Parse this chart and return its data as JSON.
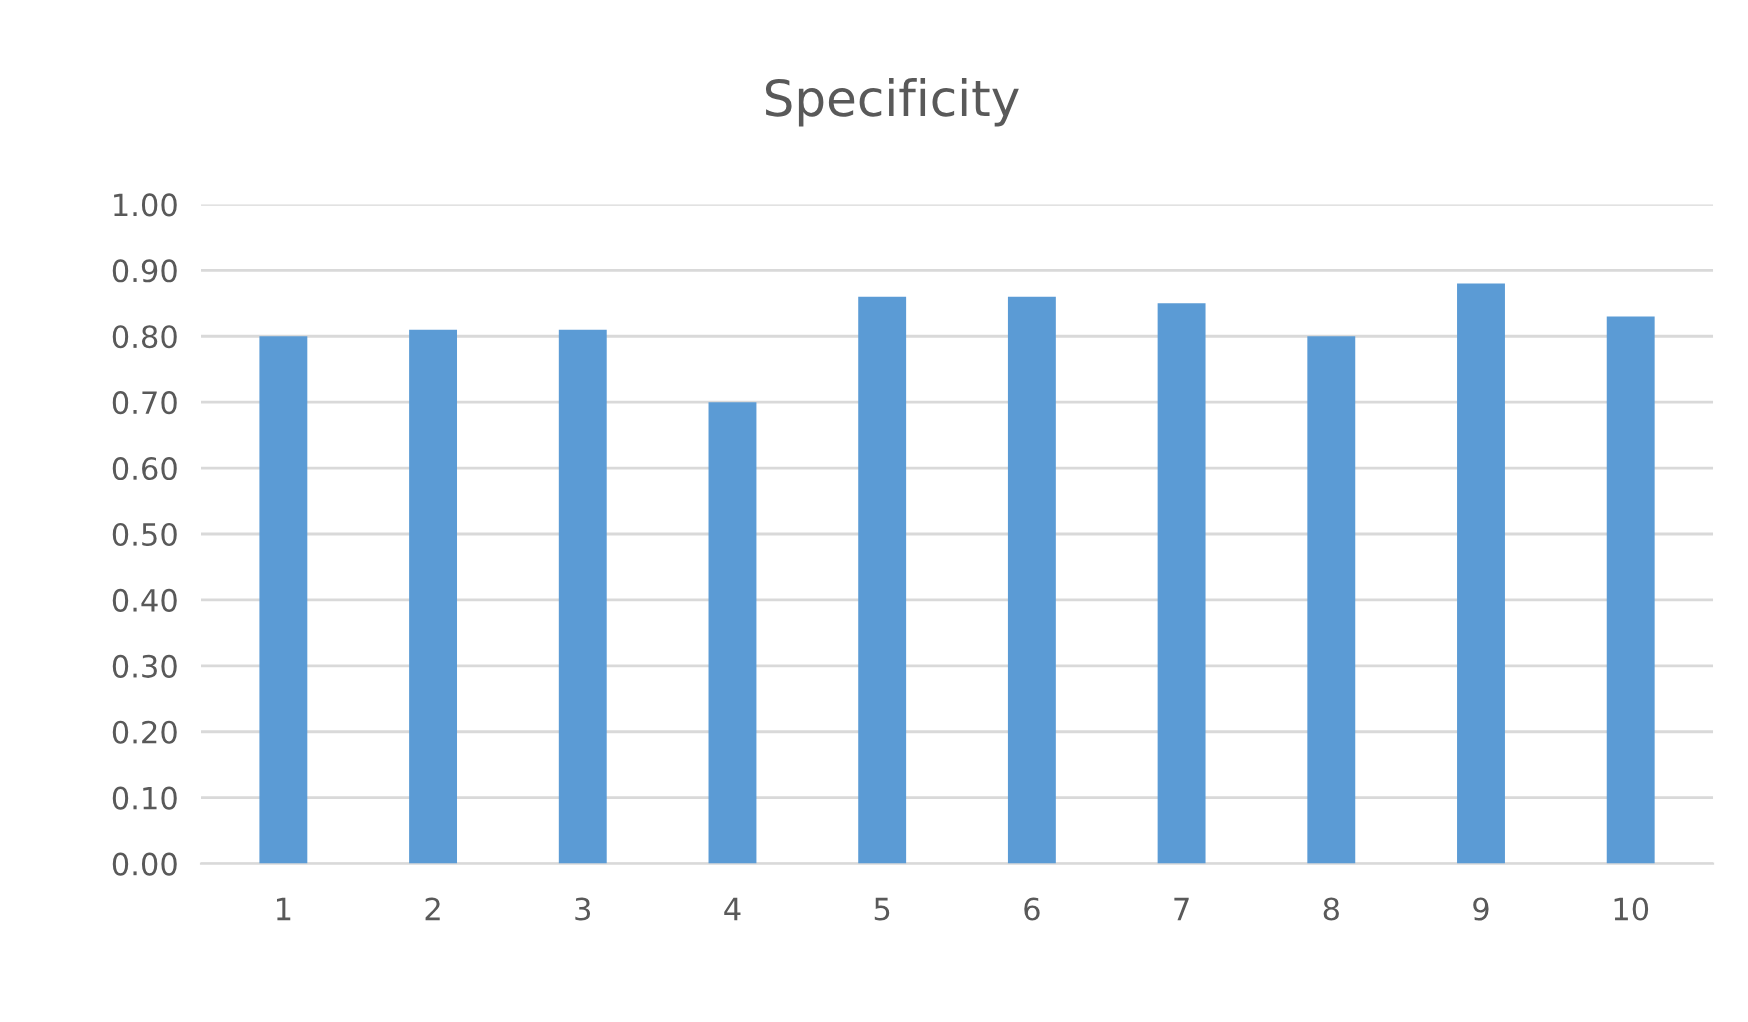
{
  "chart_data": {
    "type": "bar",
    "title": "Specificity",
    "categories": [
      "1",
      "2",
      "3",
      "4",
      "5",
      "6",
      "7",
      "8",
      "9",
      "10"
    ],
    "values": [
      0.8,
      0.81,
      0.81,
      0.7,
      0.86,
      0.86,
      0.85,
      0.8,
      0.88,
      0.83
    ],
    "color": "#5b9bd5",
    "ylim": [
      0,
      1
    ],
    "yticks": [
      {
        "value": 0,
        "label": "0.00"
      },
      {
        "value": 0.1,
        "label": "0.10"
      },
      {
        "value": 0.2,
        "label": "0.20"
      },
      {
        "value": 0.3,
        "label": "0.30"
      },
      {
        "value": 0.4,
        "label": "0.40"
      },
      {
        "value": 0.5,
        "label": "0.50"
      },
      {
        "value": 0.6,
        "label": "0.60"
      },
      {
        "value": 0.7,
        "label": "0.70"
      },
      {
        "value": 0.8,
        "label": "0.80"
      },
      {
        "value": 0.9,
        "label": "0.90"
      },
      {
        "value": 1.0,
        "label": "1.00"
      }
    ],
    "grid": "y"
  }
}
